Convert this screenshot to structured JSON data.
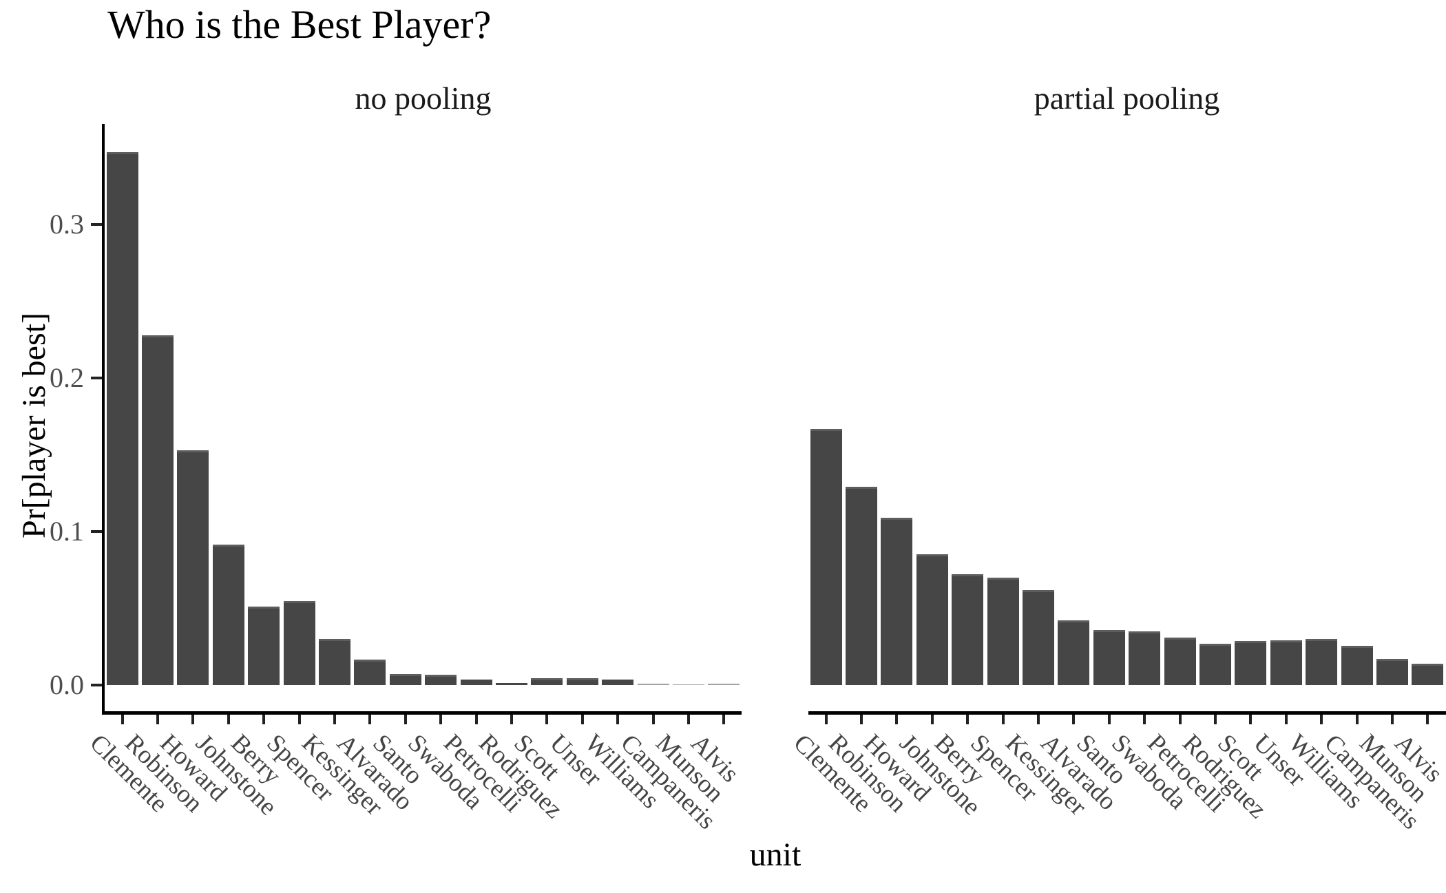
{
  "title": "Who is the Best Player?",
  "y_axis": {
    "title": "Pr[player is best]",
    "tick_labels": [
      "0.0",
      "0.1",
      "0.2",
      "0.3"
    ]
  },
  "x_axis": {
    "title": "unit"
  },
  "chart_data": {
    "type": "bar",
    "title": "Who is the Best Player?",
    "xlabel": "unit",
    "ylabel": "Pr[player is best]",
    "categories": [
      "Clemente",
      "Robinson",
      "Howard",
      "Johnstone",
      "Berry",
      "Spencer",
      "Kessinger",
      "Alvarado",
      "Santo",
      "Swaboda",
      "Petrocelli",
      "Rodriguez",
      "Scott",
      "Unser",
      "Williams",
      "Campaneris",
      "Munson",
      "Alvis"
    ],
    "series": [
      {
        "name": "no pooling",
        "values": [
          0.347,
          0.228,
          0.153,
          0.0915,
          0.051,
          0.0545,
          0.03,
          0.0166,
          0.0072,
          0.0067,
          0.0036,
          0.0015,
          0.0047,
          0.0047,
          0.0036,
          0.001,
          0.0005,
          0.001
        ]
      },
      {
        "name": "partial pooling",
        "values": [
          0.167,
          0.129,
          0.109,
          0.085,
          0.072,
          0.07,
          0.062,
          0.042,
          0.036,
          0.035,
          0.031,
          0.027,
          0.0285,
          0.029,
          0.03,
          0.0255,
          0.017,
          0.014
        ]
      }
    ],
    "facet_layout": "columns",
    "x_label_angle": -45,
    "ylim": [
      -0.0175,
      0.3675
    ],
    "y_ticks": [
      0.0,
      0.1,
      0.2,
      0.3
    ],
    "grid": false,
    "legend": false,
    "bar_color": "#464646"
  },
  "colors": {
    "background": "#ffffff",
    "bar": "#464646",
    "bar_top_edge": "#5d5d5d",
    "axis_line": "#000000",
    "tick_mark": "#222222",
    "tick_label": "#4d4d4d",
    "x_label_text": "#454545",
    "strip_text": "#1a1a1a",
    "title_text": "#000000"
  }
}
